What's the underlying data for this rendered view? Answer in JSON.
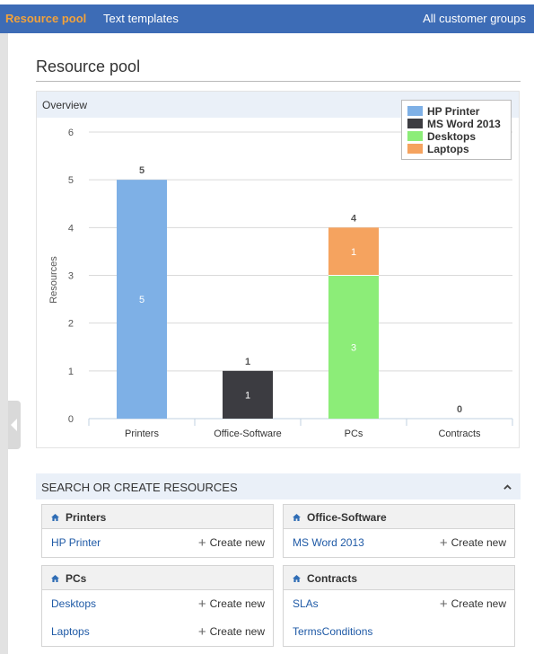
{
  "topnav": {
    "tabs": [
      {
        "label": "Resource pool",
        "active": true
      },
      {
        "label": "Text templates",
        "active": false
      }
    ],
    "right_link": "All customer groups"
  },
  "page": {
    "title": "Resource pool"
  },
  "overview": {
    "title": "Overview"
  },
  "chart_data": {
    "type": "bar",
    "stacked": true,
    "categories": [
      "Printers",
      "Office-Software",
      "PCs",
      "Contracts"
    ],
    "series": [
      {
        "name": "HP Printer",
        "color": "#7eb0e6",
        "values": [
          5,
          0,
          0,
          0
        ]
      },
      {
        "name": "MS Word 2013",
        "color": "#3c3c41",
        "values": [
          0,
          1,
          0,
          0
        ]
      },
      {
        "name": "Desktops",
        "color": "#8ced78",
        "values": [
          0,
          0,
          3,
          0
        ]
      },
      {
        "name": "Laptops",
        "color": "#f5a35f",
        "values": [
          0,
          0,
          1,
          0
        ]
      }
    ],
    "totals": [
      5,
      1,
      4,
      0
    ],
    "ylabel": "Resources",
    "xlabel": "",
    "ylim": [
      0,
      6
    ],
    "yticks": [
      0,
      1,
      2,
      3,
      4,
      5,
      6
    ],
    "grid": true,
    "legend_position": "top-right"
  },
  "search": {
    "title": "SEARCH OR CREATE RESOURCES",
    "create_label": "Create new",
    "groups": [
      {
        "title": "Printers",
        "items": [
          "HP Printer"
        ]
      },
      {
        "title": "Office-Software",
        "items": [
          "MS Word 2013"
        ]
      },
      {
        "title": "PCs",
        "items": [
          "Desktops",
          "Laptops"
        ]
      },
      {
        "title": "Contracts",
        "items": [
          "SLAs",
          "TermsConditions"
        ]
      }
    ]
  },
  "icons": {
    "home": "home-icon",
    "plus": "plus-icon",
    "collapse": "chevron-up-icon",
    "sidebar_toggle": "chevron-left-icon"
  }
}
